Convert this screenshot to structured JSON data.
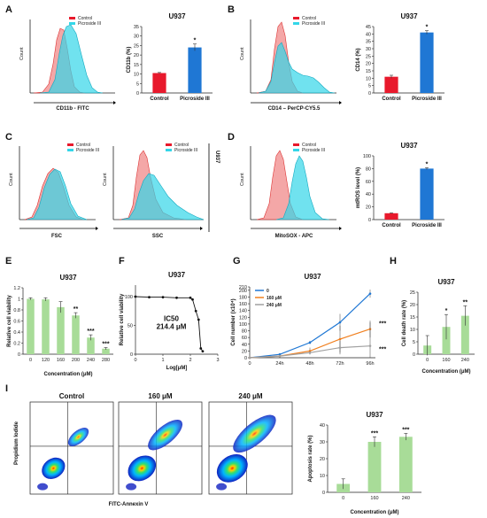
{
  "panels": {
    "A": "A",
    "B": "B",
    "C": "C",
    "D": "D",
    "E": "E",
    "F": "F",
    "G": "G",
    "H": "H",
    "I": "I"
  },
  "colors": {
    "control": "#e8192c",
    "picroside": "#1f77d4",
    "green": "#a8dc98",
    "hist_control": "#f08a8a",
    "hist_picroside": "#33d6e8",
    "orange": "#f08020",
    "gray": "#a0a0a0"
  },
  "histograms": {
    "legend_control": "Control",
    "legend_picroside": "Picroside III",
    "count_label": "Count",
    "A_xlabel": "CD11b - FITC",
    "B_xlabel": "CD14 – PerCP-CY5.5",
    "C_fsc_xlabel": "FSC",
    "C_ssc_xlabel": "SSC",
    "C_side_label": "U937",
    "D_xlabel": "MitoSOX - APC"
  },
  "facs": {
    "titles": [
      "Control",
      "160 μM",
      "240 μM"
    ],
    "ylabel": "Propidium Iodide",
    "xlabel": "FITC-Annexin V"
  },
  "chart_data": [
    {
      "id": "A",
      "type": "bar",
      "title": "U937",
      "categories": [
        "Control",
        "Picroside III"
      ],
      "values": [
        10.5,
        24
      ],
      "errors": [
        0.3,
        1.8
      ],
      "ylabel": "CD11b (%)",
      "ylim": [
        0,
        35
      ],
      "yticks": [
        "0",
        "5",
        "10",
        "15",
        "20",
        "25",
        "30",
        "35"
      ],
      "significance": [
        "",
        "*"
      ]
    },
    {
      "id": "B",
      "type": "bar",
      "title": "U937",
      "categories": [
        "Control",
        "Picroside III"
      ],
      "values": [
        11,
        41
      ],
      "errors": [
        1,
        1.2
      ],
      "ylabel": "CD14 (%)",
      "ylim": [
        0,
        45
      ],
      "yticks": [
        "0",
        "5",
        "10",
        "15",
        "20",
        "25",
        "30",
        "35",
        "40",
        "45"
      ],
      "significance": [
        "",
        "*"
      ]
    },
    {
      "id": "D",
      "type": "bar",
      "title": "U937",
      "categories": [
        "Control",
        "Picroside III"
      ],
      "values": [
        10,
        80
      ],
      "errors": [
        0.5,
        1.5
      ],
      "ylabel": "mtROS level (%)",
      "ylim": [
        0,
        100
      ],
      "yticks": [
        "0",
        "20",
        "40",
        "60",
        "80",
        "100"
      ],
      "significance": [
        "",
        "*"
      ]
    },
    {
      "id": "E",
      "type": "bar",
      "title": "U937",
      "categories": [
        "0",
        "120",
        "160",
        "200",
        "240",
        "280"
      ],
      "values": [
        1.0,
        0.99,
        0.85,
        0.7,
        0.3,
        0.1
      ],
      "errors": [
        0.02,
        0.03,
        0.1,
        0.05,
        0.05,
        0.02
      ],
      "xlabel": "Concentration (μM)",
      "ylabel": "Relative cell viability",
      "ylim": [
        0,
        1.2
      ],
      "yticks": [
        "0",
        "0.2",
        "0.4",
        "0.6",
        "0.8",
        "1",
        "1.2"
      ],
      "significance": [
        "",
        "",
        "",
        "**",
        "***",
        "***"
      ]
    },
    {
      "id": "F",
      "type": "line",
      "title": "U937",
      "x": [
        0,
        0.5,
        1,
        1.5,
        2,
        2.08,
        2.2,
        2.3,
        2.38,
        2.45
      ],
      "y": [
        100,
        99,
        99,
        98,
        98,
        95,
        75,
        60,
        10,
        5
      ],
      "xlabel": "Log[μM]",
      "ylabel": "Relative cell viability",
      "xlim": [
        0,
        3
      ],
      "ylim": [
        0,
        120
      ],
      "xticks": [
        "0",
        "1",
        "2",
        "3"
      ],
      "yticks": [
        "0",
        "50",
        "100"
      ],
      "annotation_1": "IC50",
      "annotation_2": "214.4 μM"
    },
    {
      "id": "G",
      "type": "line",
      "title": "U937",
      "categories": [
        "0",
        "24h",
        "48h",
        "72h",
        "96h"
      ],
      "series": [
        {
          "name": "0",
          "values": [
            0,
            10,
            45,
            105,
            190
          ],
          "errors": [
            0,
            2,
            5,
            25,
            12
          ]
        },
        {
          "name": "160 μM",
          "values": [
            0,
            5,
            20,
            55,
            85
          ],
          "errors": [
            0,
            2,
            10,
            40,
            25
          ]
        },
        {
          "name": "240 μM",
          "values": [
            0,
            5,
            15,
            30,
            35
          ],
          "errors": [
            0,
            2,
            5,
            20,
            70
          ]
        }
      ],
      "ylabel": "Cell number (x10⁴)",
      "ylim": [
        0,
        210
      ],
      "yticks": [
        "0",
        "20",
        "40",
        "60",
        "80",
        "100",
        "120",
        "140",
        "160",
        "180",
        "200",
        "210"
      ],
      "significance": [
        "***",
        "***"
      ]
    },
    {
      "id": "H",
      "type": "bar",
      "title": "U937",
      "categories": [
        "0",
        "160",
        "240"
      ],
      "values": [
        3.5,
        11,
        15.5
      ],
      "errors": [
        4,
        5,
        4
      ],
      "xlabel": "Concentration (μM)",
      "ylabel": "Cell death rate (%)",
      "ylim": [
        0,
        25
      ],
      "yticks": [
        "0",
        "5",
        "10",
        "15",
        "20",
        "25"
      ],
      "significance": [
        "",
        "*",
        "**"
      ]
    },
    {
      "id": "I",
      "type": "bar",
      "title": "U937",
      "categories": [
        "0",
        "160",
        "240"
      ],
      "values": [
        5,
        30,
        33
      ],
      "errors": [
        3,
        3,
        2
      ],
      "xlabel": "Concentration (μM)",
      "ylabel": "Apoptosis rate (%)",
      "ylim": [
        0,
        40
      ],
      "yticks": [
        "0",
        "10",
        "20",
        "30",
        "40"
      ],
      "significance": [
        "",
        "***",
        "***"
      ]
    }
  ]
}
